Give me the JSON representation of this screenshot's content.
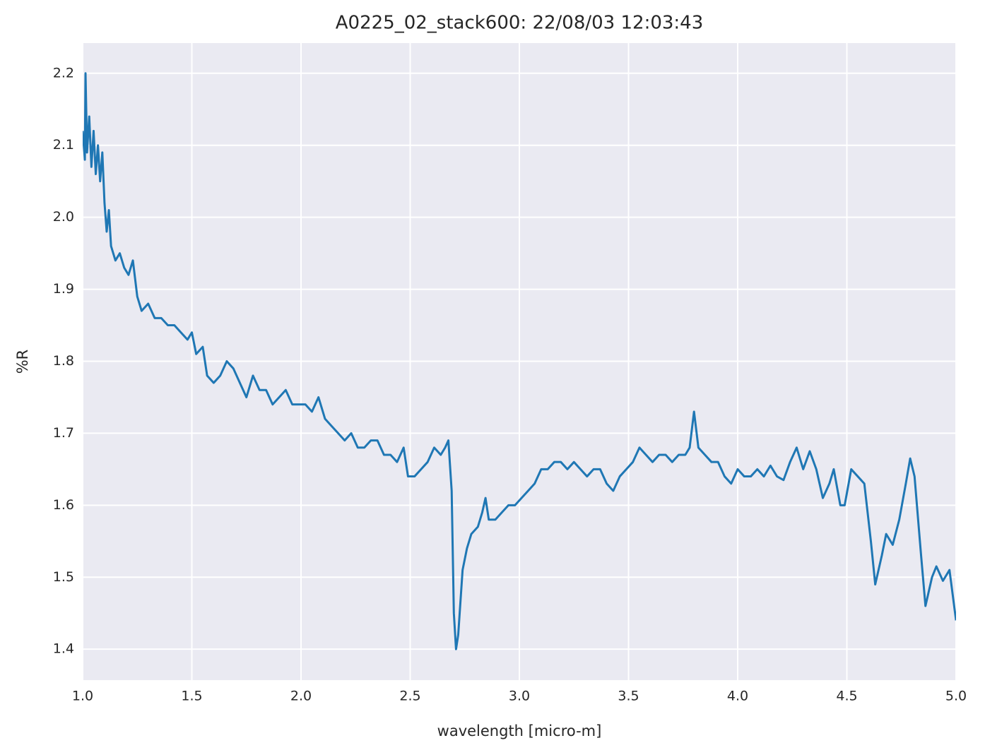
{
  "chart_data": {
    "type": "line",
    "title": "A0225_02_stack600:  22/08/03 12:03:43",
    "x_label": "wavelength [micro-m]",
    "y_label": "%R",
    "xlim": [
      1,
      5
    ],
    "ylim": [
      1.357,
      2.242
    ],
    "xticks": [
      {
        "value": 1,
        "label": "1.0"
      },
      1.5,
      {
        "value": 2,
        "label": "2.0"
      },
      2.5,
      {
        "value": 3,
        "label": "3.0"
      },
      3.5,
      {
        "value": 4,
        "label": "4.0"
      },
      4.5,
      {
        "value": 5,
        "label": "5.0"
      }
    ],
    "yticks": [
      1.4,
      1.5,
      1.6,
      1.7,
      1.8,
      1.9,
      {
        "value": 2,
        "label": "2.0"
      },
      2.1,
      2.2
    ],
    "grid": true,
    "background": "#eaeaf2",
    "color": "#1f77b4",
    "x": [
      1.0,
      1.01,
      1.013,
      1.02,
      1.03,
      1.04,
      1.05,
      1.06,
      1.07,
      1.08,
      1.09,
      1.1,
      1.11,
      1.12,
      1.13,
      1.15,
      1.17,
      1.19,
      1.21,
      1.23,
      1.25,
      1.27,
      1.3,
      1.33,
      1.36,
      1.39,
      1.42,
      1.45,
      1.48,
      1.5,
      1.52,
      1.55,
      1.57,
      1.6,
      1.63,
      1.66,
      1.69,
      1.72,
      1.75,
      1.78,
      1.81,
      1.84,
      1.87,
      1.9,
      1.93,
      1.96,
      1.99,
      2.02,
      2.05,
      2.08,
      2.11,
      2.14,
      2.17,
      2.2,
      2.23,
      2.26,
      2.29,
      2.32,
      2.35,
      2.38,
      2.41,
      2.44,
      2.47,
      2.49,
      2.52,
      2.55,
      2.58,
      2.61,
      2.64,
      2.66,
      2.675,
      2.69,
      2.7,
      2.71,
      2.72,
      2.74,
      2.76,
      2.78,
      2.81,
      2.83,
      2.845,
      2.86,
      2.89,
      2.92,
      2.95,
      2.98,
      3.01,
      3.04,
      3.07,
      3.1,
      3.13,
      3.16,
      3.19,
      3.22,
      3.25,
      3.28,
      3.31,
      3.34,
      3.37,
      3.4,
      3.43,
      3.46,
      3.49,
      3.52,
      3.55,
      3.58,
      3.61,
      3.64,
      3.67,
      3.7,
      3.73,
      3.76,
      3.78,
      3.8,
      3.82,
      3.85,
      3.88,
      3.91,
      3.94,
      3.97,
      4.0,
      4.03,
      4.06,
      4.09,
      4.12,
      4.15,
      4.18,
      4.21,
      4.24,
      4.27,
      4.3,
      4.33,
      4.36,
      4.39,
      4.42,
      4.44,
      4.47,
      4.49,
      4.52,
      4.55,
      4.58,
      4.61,
      4.63,
      4.66,
      4.68,
      4.71,
      4.74,
      4.77,
      4.79,
      4.81,
      4.84,
      4.86,
      4.89,
      4.91,
      4.94,
      4.97,
      5.0
    ],
    "values": [
      2.12,
      2.08,
      2.2,
      2.09,
      2.14,
      2.07,
      2.12,
      2.06,
      2.1,
      2.05,
      2.09,
      2.02,
      1.98,
      2.01,
      1.96,
      1.94,
      1.95,
      1.93,
      1.92,
      1.94,
      1.89,
      1.87,
      1.88,
      1.86,
      1.86,
      1.85,
      1.85,
      1.84,
      1.83,
      1.84,
      1.81,
      1.82,
      1.78,
      1.77,
      1.78,
      1.8,
      1.79,
      1.77,
      1.75,
      1.78,
      1.76,
      1.76,
      1.74,
      1.75,
      1.76,
      1.74,
      1.74,
      1.74,
      1.73,
      1.75,
      1.72,
      1.71,
      1.7,
      1.69,
      1.7,
      1.68,
      1.68,
      1.69,
      1.69,
      1.67,
      1.67,
      1.66,
      1.68,
      1.64,
      1.64,
      1.65,
      1.66,
      1.68,
      1.67,
      1.68,
      1.69,
      1.62,
      1.45,
      1.4,
      1.42,
      1.51,
      1.54,
      1.56,
      1.57,
      1.59,
      1.61,
      1.58,
      1.58,
      1.59,
      1.6,
      1.6,
      1.61,
      1.62,
      1.63,
      1.65,
      1.65,
      1.66,
      1.66,
      1.65,
      1.66,
      1.65,
      1.64,
      1.65,
      1.65,
      1.63,
      1.62,
      1.64,
      1.65,
      1.66,
      1.68,
      1.67,
      1.66,
      1.67,
      1.67,
      1.66,
      1.67,
      1.67,
      1.68,
      1.73,
      1.68,
      1.67,
      1.66,
      1.66,
      1.64,
      1.63,
      1.65,
      1.64,
      1.64,
      1.65,
      1.64,
      1.655,
      1.64,
      1.635,
      1.66,
      1.68,
      1.65,
      1.675,
      1.65,
      1.61,
      1.63,
      1.65,
      1.6,
      1.6,
      1.65,
      1.64,
      1.63,
      1.55,
      1.49,
      1.53,
      1.56,
      1.545,
      1.58,
      1.63,
      1.665,
      1.64,
      1.53,
      1.46,
      1.5,
      1.515,
      1.495,
      1.51,
      1.44
    ]
  }
}
